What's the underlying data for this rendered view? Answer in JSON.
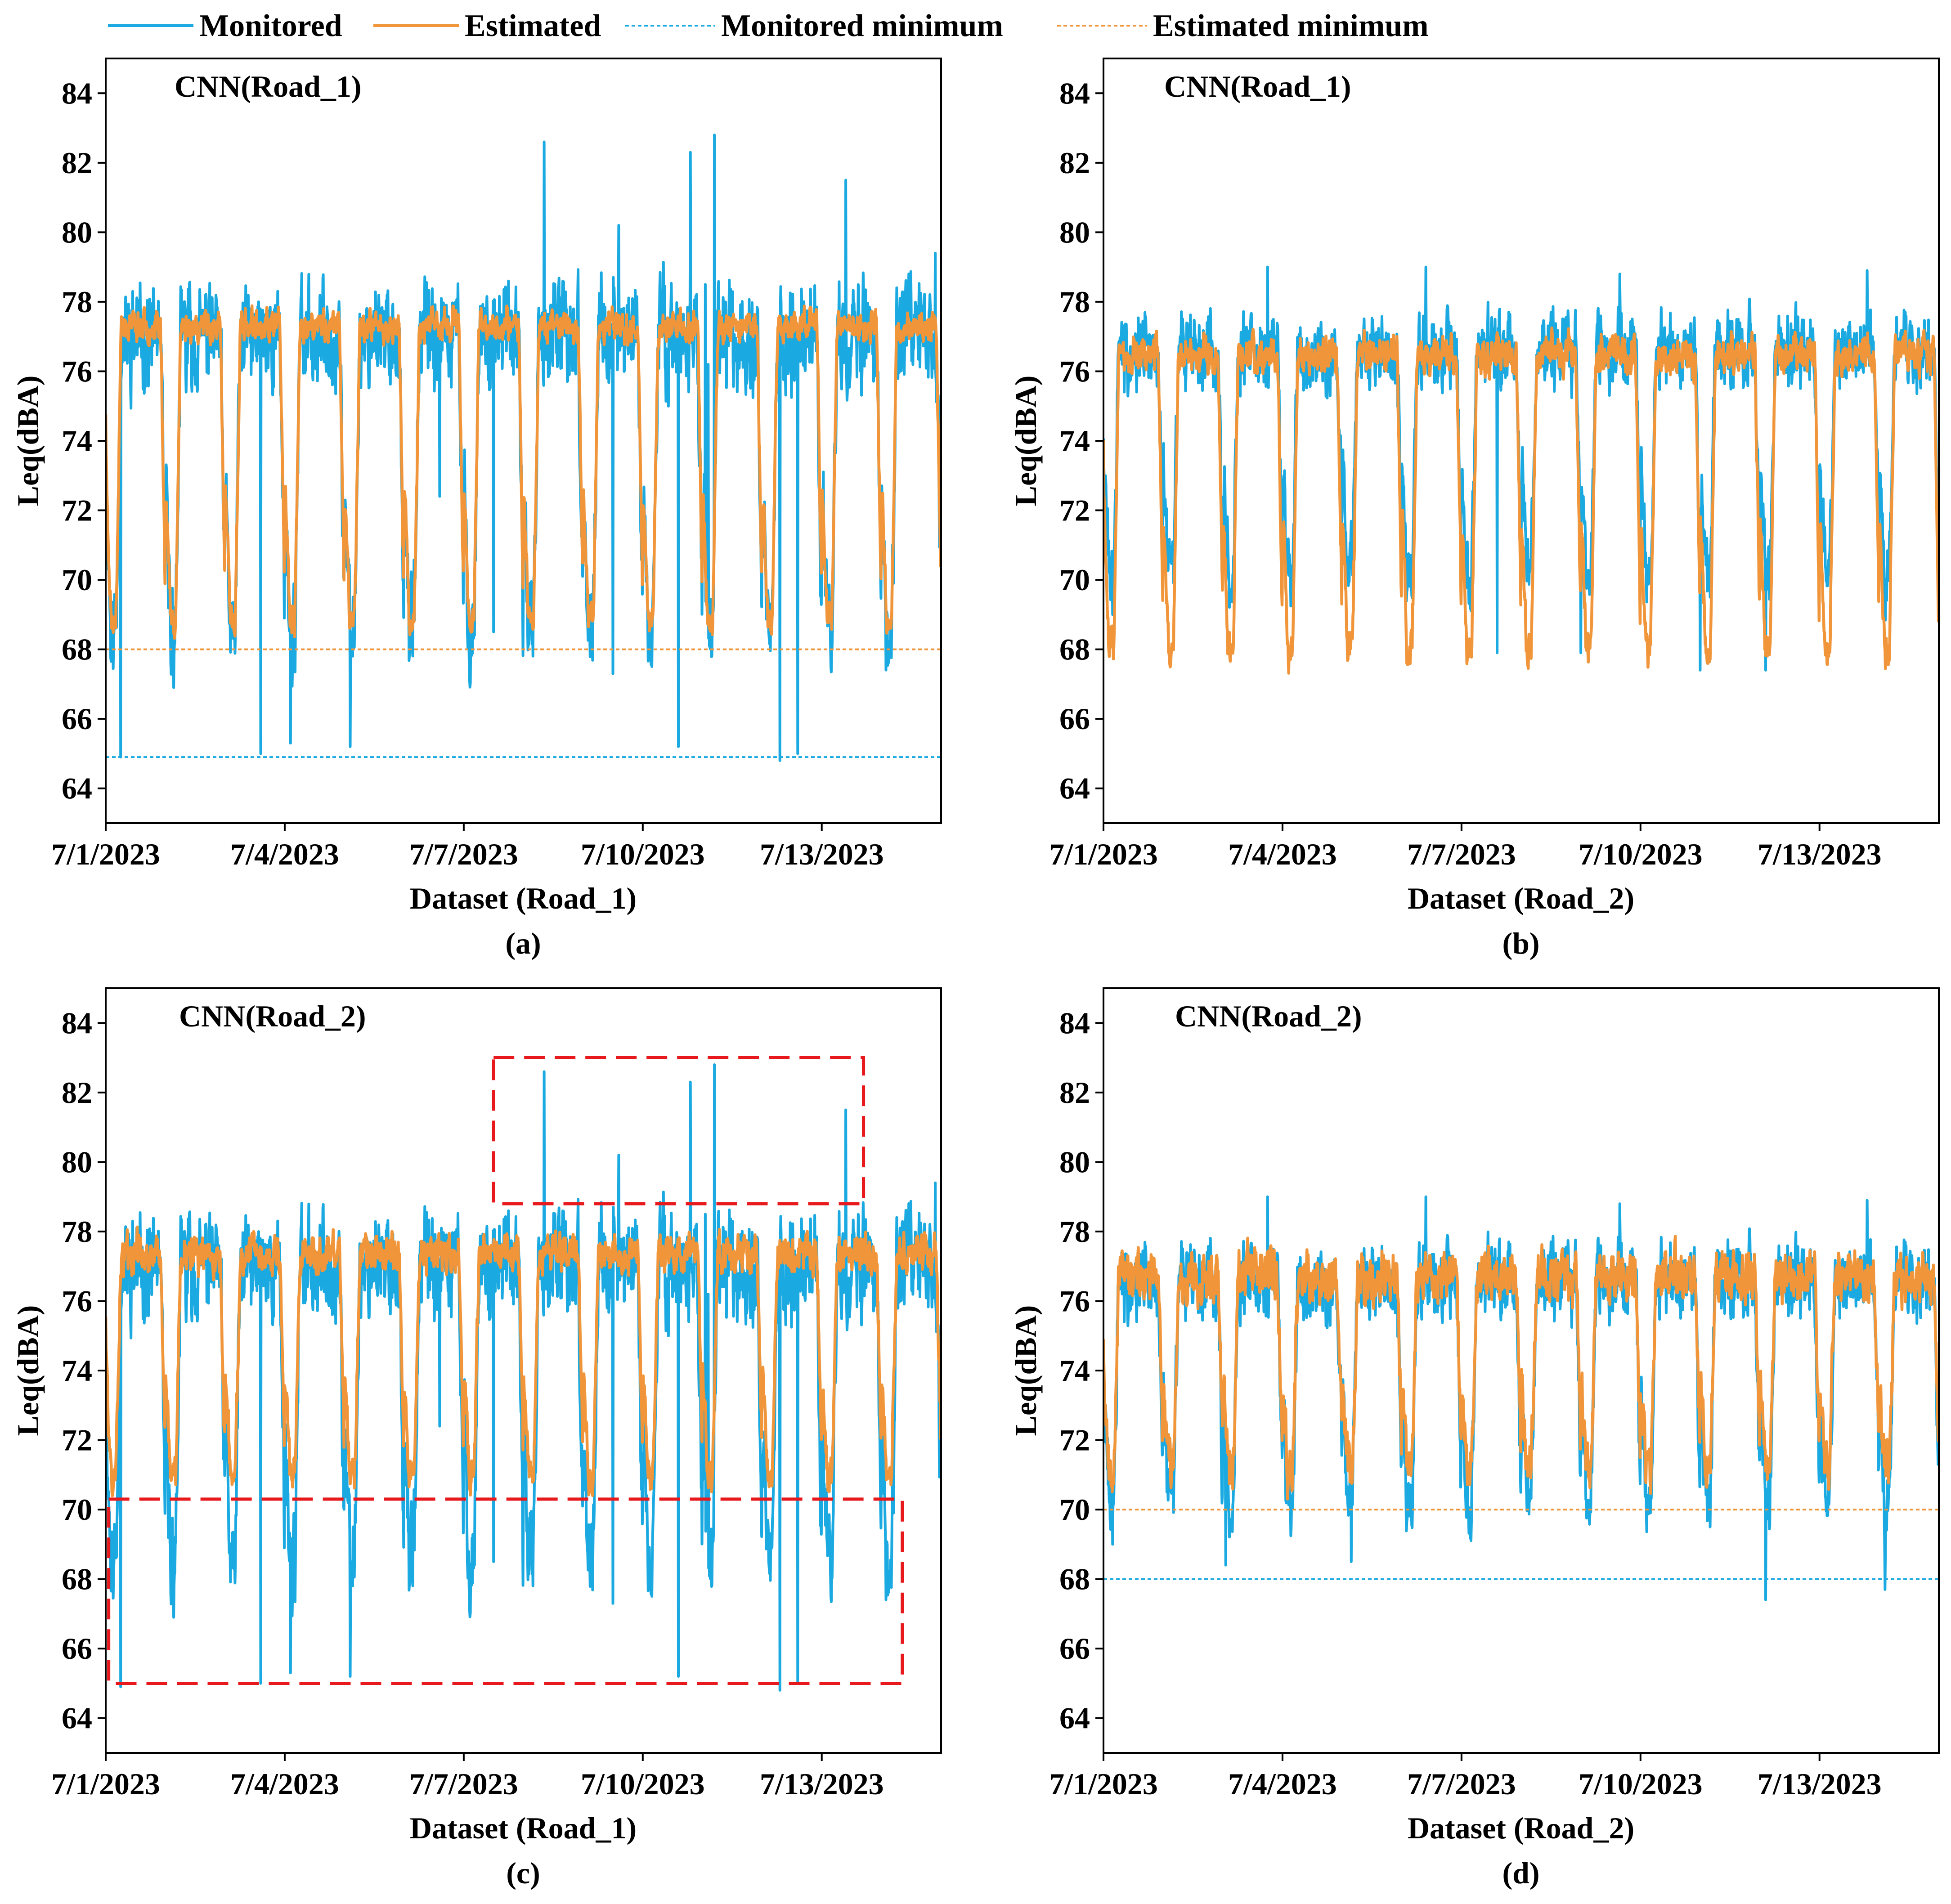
{
  "colors": {
    "monitored": "#1aa9e0",
    "estimated": "#f0953a",
    "highlight": "#e8191c",
    "axis": "#000000"
  },
  "legend": [
    {
      "label": "Monitored",
      "style": "solid",
      "color_key": "monitored"
    },
    {
      "label": "Estimated",
      "style": "solid",
      "color_key": "estimated"
    },
    {
      "label": "Monitored minimum",
      "style": "dotted",
      "color_key": "monitored"
    },
    {
      "label": "Estimated minimum",
      "style": "dotted",
      "color_key": "estimated"
    }
  ],
  "chart_data": [
    {
      "type": "line",
      "panel": "(a)",
      "title": "CNN(Road_1)",
      "xlabel": "Dataset (Road_1)",
      "ylabel": "Leq(dBA)",
      "xticks": [
        "7/1/2023",
        "7/4/2023",
        "7/7/2023",
        "7/10/2023",
        "7/13/2023"
      ],
      "xlim_days": [
        0,
        14
      ],
      "ylim": [
        63,
        85
      ],
      "yticks": [
        64,
        66,
        68,
        70,
        72,
        74,
        76,
        78,
        80,
        82,
        84
      ],
      "series": [
        {
          "name": "Monitored",
          "day_level": 77.0,
          "night_level": 68.5,
          "noise": 1.6,
          "seed": 11,
          "spikes": [
            [
              2.0,
              71.6
            ],
            [
              2.6,
              65.0
            ],
            [
              5.6,
              72.4
            ],
            [
              6.5,
              68.5
            ],
            [
              7.35,
              82.6
            ],
            [
              8.5,
              67.3
            ],
            [
              10.05,
              78.5
            ],
            [
              10.1,
              80.6
            ],
            [
              8.6,
              80.2
            ],
            [
              10.2,
              82.8
            ],
            [
              9.8,
              82.3
            ],
            [
              10.1,
              76.2
            ],
            [
              12.4,
              81.5
            ],
            [
              13.9,
              79.4
            ],
            [
              11.3,
              64.8
            ],
            [
              11.6,
              65.0
            ],
            [
              9.6,
              65.2
            ],
            [
              3.1,
              65.3
            ],
            [
              4.1,
              65.2
            ],
            [
              1.35,
              75.4
            ],
            [
              0.25,
              64.9
            ]
          ]
        },
        {
          "name": "Estimated",
          "day_level": 77.3,
          "night_level": 68.8,
          "noise": 0.5,
          "seed": 23,
          "spikes": []
        },
        {
          "name": "Monitored minimum",
          "constant": 64.9
        },
        {
          "name": "Estimated minimum",
          "constant": 68.0
        }
      ]
    },
    {
      "type": "line",
      "panel": "(b)",
      "title": "CNN(Road_1)",
      "xlabel": "Dataset (Road_2)",
      "ylabel": "Leq(dBA)",
      "xticks": [
        "7/1/2023",
        "7/4/2023",
        "7/7/2023",
        "7/10/2023",
        "7/13/2023"
      ],
      "xlim_days": [
        0,
        14
      ],
      "ylim": [
        63,
        85
      ],
      "yticks": [
        64,
        66,
        68,
        70,
        72,
        74,
        76,
        78,
        80,
        82,
        84
      ],
      "series": [
        {
          "name": "Monitored",
          "day_level": 76.6,
          "night_level": 70.2,
          "noise": 1.2,
          "seed": 31,
          "spikes": [
            [
              0.15,
              69.0
            ],
            [
              0.35,
              75.4
            ],
            [
              2.75,
              79.0
            ],
            [
              8.65,
              78.8
            ],
            [
              5.4,
              79.0
            ],
            [
              12.8,
              78.9
            ],
            [
              10.0,
              67.4
            ],
            [
              11.1,
              67.4
            ],
            [
              6.6,
              67.9
            ],
            [
              8.0,
              67.9
            ]
          ]
        },
        {
          "name": "Estimated",
          "day_level": 76.5,
          "night_level": 68.0,
          "noise": 0.6,
          "seed": 47,
          "spikes": []
        }
      ]
    },
    {
      "type": "line",
      "panel": "(c)",
      "title": "CNN(Road_2)",
      "xlabel": "Dataset (Road_1)",
      "ylabel": "Leq(dBA)",
      "xticks": [
        "7/1/2023",
        "7/4/2023",
        "7/7/2023",
        "7/10/2023",
        "7/13/2023"
      ],
      "xlim_days": [
        0,
        14
      ],
      "ylim": [
        63,
        85
      ],
      "yticks": [
        64,
        66,
        68,
        70,
        72,
        74,
        76,
        78,
        80,
        82,
        84
      ],
      "highlight_boxes": [
        {
          "x_days": [
            6.5,
            12.7
          ],
          "y": [
            78.8,
            83.0
          ]
        },
        {
          "x_days": [
            0.05,
            13.35
          ],
          "y": [
            65.0,
            70.3
          ]
        }
      ],
      "series": [
        {
          "name": "Monitored",
          "day_level": 77.0,
          "night_level": 68.5,
          "noise": 1.6,
          "seed": 11,
          "spikes": [
            [
              2.0,
              71.6
            ],
            [
              2.6,
              65.0
            ],
            [
              5.6,
              72.4
            ],
            [
              6.5,
              68.5
            ],
            [
              7.35,
              82.6
            ],
            [
              8.5,
              67.3
            ],
            [
              10.05,
              78.5
            ],
            [
              10.1,
              80.6
            ],
            [
              8.6,
              80.2
            ],
            [
              10.2,
              82.8
            ],
            [
              9.8,
              82.3
            ],
            [
              10.1,
              76.2
            ],
            [
              12.4,
              81.5
            ],
            [
              13.9,
              79.4
            ],
            [
              11.3,
              64.8
            ],
            [
              11.6,
              65.0
            ],
            [
              9.6,
              65.2
            ],
            [
              3.1,
              65.3
            ],
            [
              4.1,
              65.2
            ],
            [
              1.35,
              75.4
            ],
            [
              0.25,
              64.9
            ]
          ]
        },
        {
          "name": "Estimated",
          "day_level": 77.4,
          "night_level": 71.0,
          "noise": 0.6,
          "seed": 59,
          "spikes": []
        }
      ]
    },
    {
      "type": "line",
      "panel": "(d)",
      "title": "CNN(Road_2)",
      "xlabel": "Dataset (Road_2)",
      "ylabel": "Leq(dBA)",
      "xticks": [
        "7/1/2023",
        "7/4/2023",
        "7/7/2023",
        "7/10/2023",
        "7/13/2023"
      ],
      "xlim_days": [
        0,
        14
      ],
      "ylim": [
        63,
        85
      ],
      "yticks": [
        64,
        66,
        68,
        70,
        72,
        74,
        76,
        78,
        80,
        82,
        84
      ],
      "series": [
        {
          "name": "Monitored",
          "day_level": 76.6,
          "night_level": 70.2,
          "noise": 1.2,
          "seed": 31,
          "spikes": [
            [
              0.15,
              69.0
            ],
            [
              0.35,
              75.4
            ],
            [
              2.75,
              79.0
            ],
            [
              8.65,
              78.8
            ],
            [
              5.4,
              79.0
            ],
            [
              12.8,
              78.9
            ],
            [
              11.1,
              67.4
            ],
            [
              13.1,
              67.7
            ],
            [
              2.05,
              68.4
            ],
            [
              4.15,
              68.5
            ]
          ]
        },
        {
          "name": "Estimated",
          "day_level": 76.7,
          "night_level": 71.3,
          "noise": 0.8,
          "seed": 67,
          "spikes": []
        },
        {
          "name": "Monitored minimum",
          "constant": 68.0
        },
        {
          "name": "Estimated minimum",
          "constant": 70.0
        }
      ]
    }
  ]
}
